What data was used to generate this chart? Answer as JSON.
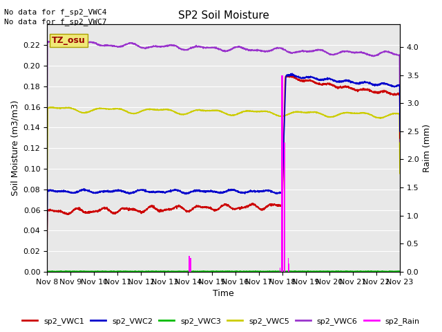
{
  "title": "SP2 Soil Moisture",
  "xlabel": "Time",
  "ylabel_left": "Soil Moisture (m3/m3)",
  "ylabel_right": "Raim (mm)",
  "no_data_text": [
    "No data for f_sp2_VWC4",
    "No data for f_sp2_VWC7"
  ],
  "tz_label": "TZ_osu",
  "ylim_left": [
    0.0,
    0.24
  ],
  "ylim_right": [
    0.0,
    4.4
  ],
  "yticks_left": [
    0.0,
    0.02,
    0.04,
    0.06,
    0.08,
    0.1,
    0.12,
    0.14,
    0.16,
    0.18,
    0.2,
    0.22
  ],
  "yticks_right": [
    0.0,
    0.5,
    1.0,
    1.5,
    2.0,
    2.5,
    3.0,
    3.5,
    4.0
  ],
  "x_tick_labels": [
    "Nov 8",
    "Nov 9",
    "Nov 10",
    "Nov 11",
    "Nov 12",
    "Nov 13",
    "Nov 14",
    "Nov 15",
    "Nov 16",
    "Nov 17",
    "Nov 18",
    "Nov 19",
    "Nov 20",
    "Nov 21",
    "Nov 22",
    "Nov 23"
  ],
  "colors": {
    "VWC1": "#cc0000",
    "VWC2": "#0000cc",
    "VWC3": "#00bb00",
    "VWC5": "#cccc00",
    "VWC6": "#9933cc",
    "Rain": "#ff00ff",
    "background": "#e8e8e8",
    "grid": "#ffffff"
  },
  "legend_entries": [
    {
      "label": "sp2_VWC1",
      "color": "#cc0000"
    },
    {
      "label": "sp2_VWC2",
      "color": "#0000cc"
    },
    {
      "label": "sp2_VWC3",
      "color": "#00bb00"
    },
    {
      "label": "sp2_VWC5",
      "color": "#cccc00"
    },
    {
      "label": "sp2_VWC6",
      "color": "#9933cc"
    },
    {
      "label": "sp2_Rain",
      "color": "#ff00ff"
    }
  ]
}
